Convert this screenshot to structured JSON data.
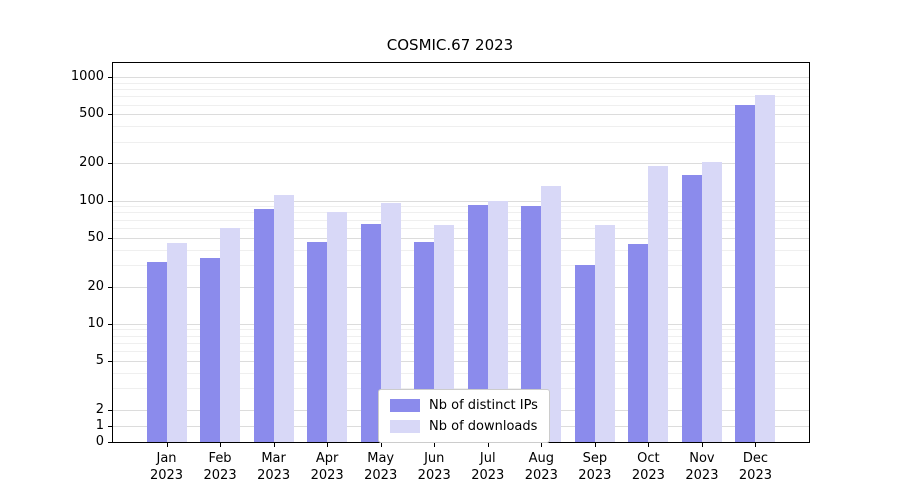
{
  "chart_data": {
    "type": "bar",
    "title": "COSMIC.67 2023",
    "categories": [
      "Jan 2023",
      "Feb 2023",
      "Mar 2023",
      "Apr 2023",
      "May 2023",
      "Jun 2023",
      "Jul 2023",
      "Aug 2023",
      "Sep 2023",
      "Oct 2023",
      "Nov 2023",
      "Dec 2023"
    ],
    "series": [
      {
        "name": "Nb of distinct IPs",
        "color": "#8b8bec",
        "values": [
          32,
          34,
          85,
          46,
          65,
          46,
          92,
          91,
          30,
          44,
          160,
          590
        ]
      },
      {
        "name": "Nb of downloads",
        "color": "#d8d8f7",
        "values": [
          45,
          60,
          110,
          80,
          95,
          63,
          100,
          130,
          63,
          190,
          205,
          720
        ]
      }
    ],
    "yscale": "symlog",
    "yticks": [
      0,
      1,
      2,
      5,
      10,
      20,
      50,
      100,
      200,
      500,
      1000
    ],
    "minor_yticks": [
      3,
      4,
      6,
      7,
      8,
      9,
      30,
      40,
      60,
      70,
      80,
      90,
      300,
      400,
      600,
      700,
      800,
      900
    ],
    "ylim": [
      0,
      1000
    ],
    "xlabel": "",
    "ylabel": "",
    "grid": "horizontal",
    "legend_position": "lower center",
    "colors": {
      "major_grid": "#dcdcdc",
      "minor_grid": "#efefef",
      "spine": "#000000",
      "legend_border": "#cccccc"
    }
  }
}
